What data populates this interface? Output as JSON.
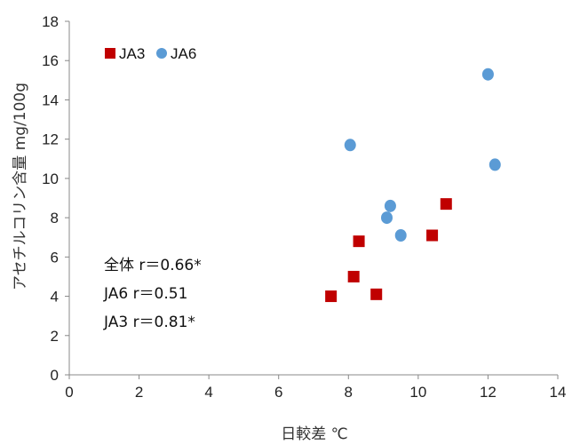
{
  "chart_data": {
    "type": "scatter",
    "title": "",
    "xlabel": "日較差 ℃",
    "ylabel": "アセチルコリン含量 mg/100g",
    "xlim": [
      0,
      14
    ],
    "ylim": [
      0,
      18
    ],
    "x_ticks": [
      0,
      2,
      4,
      6,
      8,
      10,
      12,
      14
    ],
    "y_ticks": [
      0,
      2,
      4,
      6,
      8,
      10,
      12,
      14,
      16,
      18
    ],
    "grid": false,
    "legend_position": "top-left",
    "series": [
      {
        "name": "JA3",
        "marker": "square",
        "color": "#c00000",
        "x": [
          7.5,
          8.15,
          8.3,
          8.8,
          10.4,
          10.8
        ],
        "y": [
          4.0,
          5.0,
          6.8,
          4.1,
          7.1,
          8.7
        ]
      },
      {
        "name": "JA6",
        "marker": "circle",
        "color": "#5b9bd5",
        "x": [
          8.05,
          9.1,
          9.2,
          9.5,
          12.0,
          12.2
        ],
        "y": [
          11.7,
          8.0,
          8.6,
          7.1,
          15.3,
          10.7
        ]
      }
    ],
    "annotations": [
      "全体 r＝0.66*",
      "JA6 r＝0.51",
      "JA3 r＝0.81*"
    ]
  }
}
